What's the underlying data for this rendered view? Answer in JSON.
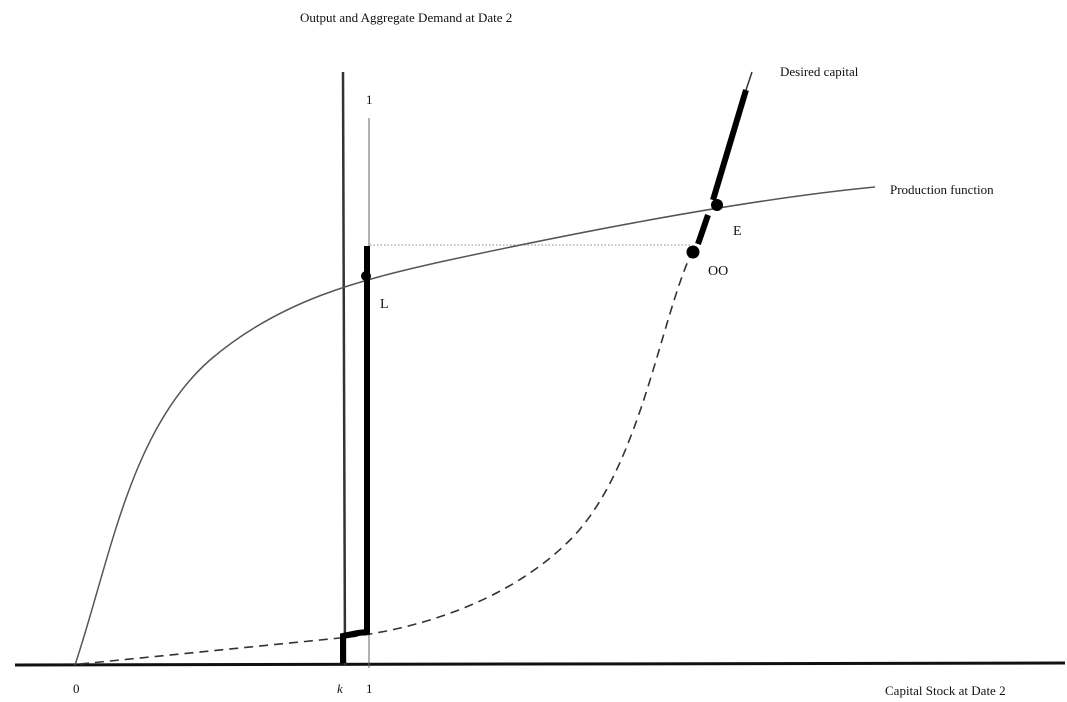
{
  "diagram": {
    "top_axis_label": "Output and Aggregate Demand at Date 2",
    "bottom_axis_label": "Capital Stock at Date 2",
    "curve_labels": {
      "desired_capital": "Desired capital",
      "production_function": "Production function"
    },
    "point_labels": {
      "L": "L",
      "E": "E",
      "OO": "OO"
    },
    "vertical_line_label": "1",
    "x_ticks": {
      "origin": "0",
      "k": "k",
      "one": "1"
    }
  }
}
